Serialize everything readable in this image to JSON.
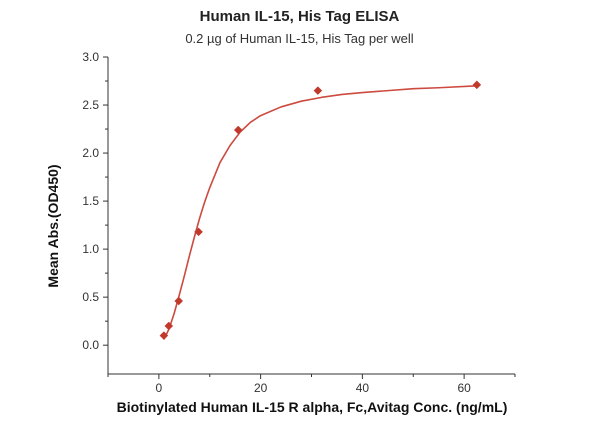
{
  "chart_data": {
    "type": "scatter",
    "title": "Human IL-15, His Tag ELISA",
    "subtitle": "0.2 µg of Human IL-15, His Tag per well",
    "xlabel": "Biotinylated Human IL-15 R alpha, Fc,Avitag Conc. (ng/mL)",
    "ylabel": "Mean Abs.(OD450)",
    "xlim": [
      -10,
      70
    ],
    "ylim": [
      -0.3,
      3.0
    ],
    "xticks": [
      0,
      20,
      40,
      60
    ],
    "yticks": [
      0.0,
      0.5,
      1.0,
      1.5,
      2.0,
      2.5,
      3.0
    ],
    "grid": false,
    "legend": "none",
    "colors": {
      "series": "#c0392b",
      "curve": "#cd4a3f",
      "axis": "#333333"
    },
    "series": [
      {
        "marker": "diamond",
        "x": [
          0.98,
          1.95,
          3.9,
          7.8,
          15.6,
          31.25,
          62.5
        ],
        "y": [
          0.1,
          0.2,
          0.46,
          1.18,
          2.24,
          2.65,
          2.71
        ]
      }
    ],
    "fit_curve": {
      "x": [
        1,
        2,
        3,
        4,
        5,
        6,
        7,
        8,
        9,
        10,
        12,
        14,
        16,
        18,
        20,
        24,
        28,
        32,
        36,
        40,
        45,
        50,
        55,
        62.5
      ],
      "y": [
        0.06,
        0.17,
        0.33,
        0.52,
        0.72,
        0.93,
        1.13,
        1.32,
        1.49,
        1.64,
        1.9,
        2.08,
        2.22,
        2.32,
        2.39,
        2.48,
        2.54,
        2.58,
        2.61,
        2.63,
        2.65,
        2.67,
        2.68,
        2.7
      ]
    }
  }
}
